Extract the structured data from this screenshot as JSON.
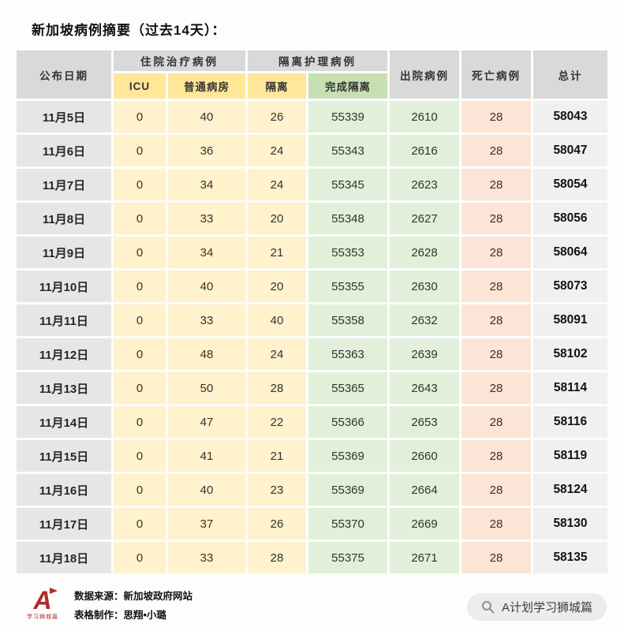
{
  "title": "新加坡病例摘要（过去14天）：",
  "chart_data": {
    "type": "table",
    "title": "新加坡病例摘要（过去14天）",
    "header": {
      "date": "公布日期",
      "hospitalized_group": "住院治疗病例",
      "icu": "ICU",
      "general_ward": "普通病房",
      "isolation_group": "隔离护理病例",
      "isolation": "隔离",
      "completed_isolation": "完成隔离",
      "discharged": "出院病例",
      "deaths": "死亡病例",
      "total": "总计"
    },
    "rows": [
      {
        "date": "11月5日",
        "icu": 0,
        "general_ward": 40,
        "isolation": 26,
        "completed_isolation": 55339,
        "discharged": 2610,
        "deaths": 28,
        "total": 58043
      },
      {
        "date": "11月6日",
        "icu": 0,
        "general_ward": 36,
        "isolation": 24,
        "completed_isolation": 55343,
        "discharged": 2616,
        "deaths": 28,
        "total": 58047
      },
      {
        "date": "11月7日",
        "icu": 0,
        "general_ward": 34,
        "isolation": 24,
        "completed_isolation": 55345,
        "discharged": 2623,
        "deaths": 28,
        "total": 58054
      },
      {
        "date": "11月8日",
        "icu": 0,
        "general_ward": 33,
        "isolation": 20,
        "completed_isolation": 55348,
        "discharged": 2627,
        "deaths": 28,
        "total": 58056
      },
      {
        "date": "11月9日",
        "icu": 0,
        "general_ward": 34,
        "isolation": 21,
        "completed_isolation": 55353,
        "discharged": 2628,
        "deaths": 28,
        "total": 58064
      },
      {
        "date": "11月10日",
        "icu": 0,
        "general_ward": 40,
        "isolation": 20,
        "completed_isolation": 55355,
        "discharged": 2630,
        "deaths": 28,
        "total": 58073
      },
      {
        "date": "11月11日",
        "icu": 0,
        "general_ward": 33,
        "isolation": 40,
        "completed_isolation": 55358,
        "discharged": 2632,
        "deaths": 28,
        "total": 58091
      },
      {
        "date": "11月12日",
        "icu": 0,
        "general_ward": 48,
        "isolation": 24,
        "completed_isolation": 55363,
        "discharged": 2639,
        "deaths": 28,
        "total": 58102
      },
      {
        "date": "11月13日",
        "icu": 0,
        "general_ward": 50,
        "isolation": 28,
        "completed_isolation": 55365,
        "discharged": 2643,
        "deaths": 28,
        "total": 58114
      },
      {
        "date": "11月14日",
        "icu": 0,
        "general_ward": 47,
        "isolation": 22,
        "completed_isolation": 55366,
        "discharged": 2653,
        "deaths": 28,
        "total": 58116
      },
      {
        "date": "11月15日",
        "icu": 0,
        "general_ward": 41,
        "isolation": 21,
        "completed_isolation": 55369,
        "discharged": 2660,
        "deaths": 28,
        "total": 58119
      },
      {
        "date": "11月16日",
        "icu": 0,
        "general_ward": 40,
        "isolation": 23,
        "completed_isolation": 55369,
        "discharged": 2664,
        "deaths": 28,
        "total": 58124
      },
      {
        "date": "11月17日",
        "icu": 0,
        "general_ward": 37,
        "isolation": 26,
        "completed_isolation": 55370,
        "discharged": 2669,
        "deaths": 28,
        "total": 58130
      },
      {
        "date": "11月18日",
        "icu": 0,
        "general_ward": 33,
        "isolation": 28,
        "completed_isolation": 55375,
        "discharged": 2671,
        "deaths": 28,
        "total": 58135
      }
    ]
  },
  "footer": {
    "source": "数据来源：新加坡政府网站",
    "credit": "表格制作：思翔•小璐",
    "logo_letter": "A",
    "logo_caption": "学习狮城篇",
    "wechat_account": "A计划学习狮城篇"
  },
  "colors": {
    "header_gray": "#d9d9d9",
    "date_cell_gray": "#e7e6e6",
    "yellow_header": "#ffe699",
    "yellow_cell": "#fff2cc",
    "green_header": "#c6e0b4",
    "green_cell": "#e2efda",
    "pink_cell": "#fce4d6",
    "total_cell_gray": "#f0f0f0",
    "accent_red": "#b02a2a",
    "search_pill_gray": "#ececec"
  }
}
